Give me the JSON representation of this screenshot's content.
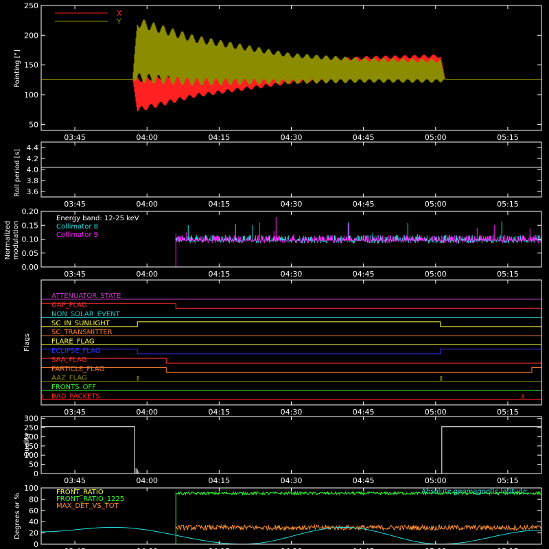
{
  "time_ticks": [
    "03:45",
    "04:00",
    "04:15",
    "04:30",
    "04:45",
    "05:00",
    "05:15"
  ],
  "panels": {
    "pointing": {
      "ylabel": "Pointing [\"]",
      "yticks": [
        "250",
        "200",
        "150",
        "100",
        "50"
      ],
      "legend": [
        {
          "label": "X",
          "color": "#ff2020"
        },
        {
          "label": "Y",
          "color": "#8c8c00"
        }
      ]
    },
    "roll": {
      "ylabel": "Roll period [s]",
      "yticks": [
        "4.4",
        "4.2",
        "4.0",
        "3.8",
        "3.6"
      ]
    },
    "modulation": {
      "ylabel_line1": "Normalized",
      "ylabel_line2": "modulation",
      "yticks": [
        "0.20",
        "0.15",
        "0.10",
        "0.05",
        "0.00"
      ],
      "legend_title": "Energy band: 12-25 keV",
      "legend": [
        {
          "label": "Collimator 8",
          "color": "#20e0e0"
        },
        {
          "label": "Collimator 9",
          "color": "#ff20ff"
        }
      ]
    },
    "flags": {
      "ylabel": "Flags",
      "items": [
        {
          "label": "ATTENUATOR_STATE",
          "color": "#c040c0"
        },
        {
          "label": "GAP_FLAG",
          "color": "#ff3030"
        },
        {
          "label": "NON_SOLAR_EVENT",
          "color": "#20c0c0"
        },
        {
          "label": "SC_IN_SUNLIGHT",
          "color": "#ffff40"
        },
        {
          "label": "SC_TRANSMITTER",
          "color": "#ff8030"
        },
        {
          "label": "FLARE_FLAG",
          "color": "#ffff40"
        },
        {
          "label": "ECLIPSE_FLAG",
          "color": "#3030ff"
        },
        {
          "label": "SAA_FLAG",
          "color": "#ff3030"
        },
        {
          "label": "PARTICLE_FLAG",
          "color": "#ff8030"
        },
        {
          "label": "AAZ_FLAG",
          "color": "#8c8c00"
        },
        {
          "label": "FRONTS_OFF",
          "color": "#30ff30"
        },
        {
          "label": "BAD_PACKETS",
          "color": "#ff2020"
        }
      ]
    },
    "quality": {
      "ylabel": "Quality",
      "yticks": [
        "300",
        "250",
        "200",
        "150",
        "100",
        "50",
        "0"
      ]
    },
    "ratio": {
      "ylabel": "Degrees or %",
      "yticks": [
        "100",
        "80",
        "60",
        "40",
        "20",
        "0"
      ],
      "legend": [
        {
          "label": "FRONT_RATIO",
          "color": "#ffff40"
        },
        {
          "label": "FRONT_RATIO_1225",
          "color": "#30ff30"
        },
        {
          "label": "MAX_DET_VS_TOT",
          "color": "#ff9030"
        }
      ],
      "annotation": "Absolute geomagnetic latitude",
      "annotation_color": "#20e0e0"
    }
  },
  "chart_data": [
    {
      "type": "line",
      "ylabel": "Pointing [\"]",
      "x_labels": [
        "03:45",
        "04:00",
        "04:15",
        "04:30",
        "04:45",
        "05:00",
        "05:15"
      ],
      "ylim": [
        40,
        250
      ],
      "series": [
        {
          "name": "X",
          "color": "#ff2020",
          "note_values": "oscillating band",
          "x": [
            "03:38",
            "03:57",
            "03:58",
            "04:10",
            "04:30",
            "04:45",
            "05:01",
            "05:02",
            "05:22"
          ],
          "lower": [
            126,
            126,
            70,
            95,
            118,
            128,
            130,
            126,
            126
          ],
          "upper": [
            126,
            126,
            130,
            140,
            155,
            165,
            168,
            126,
            126
          ]
        },
        {
          "name": "Y",
          "color": "#8c8c00",
          "x": [
            "03:38",
            "03:57",
            "03:58",
            "04:10",
            "04:30",
            "04:45",
            "05:01",
            "05:02",
            "05:22"
          ],
          "lower": [
            126,
            126,
            120,
            115,
            118,
            120,
            120,
            126,
            126
          ],
          "upper": [
            126,
            126,
            230,
            200,
            170,
            162,
            160,
            126,
            126
          ]
        }
      ]
    },
    {
      "type": "line",
      "ylabel": "Roll period [s]",
      "ylim": [
        3.5,
        4.5
      ],
      "series": [
        {
          "name": "",
          "color": "#ffffff",
          "x": [
            "03:38",
            "05:22"
          ],
          "y": [
            4.04,
            4.04
          ]
        }
      ]
    },
    {
      "type": "line",
      "title": "Energy band: 12-25 keV",
      "ylim": [
        0.0,
        0.2
      ],
      "series": [
        {
          "name": "Collimator 8",
          "color": "#20e0e0",
          "x": [
            "04:06",
            "05:22"
          ],
          "typical": 0.1,
          "max": 0.2
        },
        {
          "name": "Collimator 9",
          "color": "#ff20ff",
          "x": [
            "04:06",
            "05:22"
          ],
          "typical": 0.1,
          "max": 0.2
        }
      ]
    },
    {
      "type": "line",
      "ylabel": "Flags",
      "series": [
        {
          "name": "GAP_FLAG",
          "steps": [
            [
              "03:38",
              1
            ],
            [
              "04:06",
              0
            ]
          ]
        },
        {
          "name": "SC_IN_SUNLIGHT",
          "steps": [
            [
              "03:38",
              0
            ],
            [
              "03:58",
              1
            ],
            [
              "05:01",
              0
            ]
          ]
        },
        {
          "name": "ECLIPSE_FLAG",
          "steps": [
            [
              "03:38",
              1
            ],
            [
              "03:58",
              0
            ],
            [
              "05:01",
              1
            ]
          ]
        },
        {
          "name": "SAA_FLAG",
          "steps": [
            [
              "03:38",
              1
            ],
            [
              "04:04",
              0
            ]
          ]
        },
        {
          "name": "PARTICLE_FLAG",
          "steps": [
            [
              "03:38",
              1
            ],
            [
              "04:04",
              0
            ],
            [
              "05:20",
              1
            ]
          ]
        },
        {
          "name": "AAZ_FLAG",
          "pulses": [
            "03:58",
            "05:01"
          ]
        },
        {
          "name": "BAD_PACKETS",
          "pulses": [
            "03:38",
            "05:18"
          ]
        }
      ]
    },
    {
      "type": "line",
      "ylabel": "Quality",
      "ylim": [
        0,
        300
      ],
      "series": [
        {
          "name": "",
          "color": "#ffffff",
          "x": [
            "03:38",
            "03:57",
            "03:58",
            "03:59",
            "05:01",
            "05:22"
          ],
          "y": [
            255,
            255,
            0,
            30,
            255,
            255
          ]
        }
      ]
    },
    {
      "type": "line",
      "ylabel": "Degrees or %",
      "ylim": [
        0,
        100
      ],
      "series": [
        {
          "name": "FRONT_RATIO",
          "color": "#ffff40",
          "x": [
            "03:38",
            "05:22"
          ],
          "y": [
            0,
            0
          ]
        },
        {
          "name": "FRONT_RATIO_1225",
          "color": "#30ff30",
          "x": [
            "04:06",
            "05:22"
          ],
          "y": [
            90,
            90
          ]
        },
        {
          "name": "MAX_DET_VS_TOT",
          "color": "#ff9030",
          "x": [
            "04:06",
            "05:22"
          ],
          "y": [
            30,
            30
          ]
        },
        {
          "name": "Absolute geomagnetic latitude",
          "color": "#20e0e0",
          "x": [
            "03:38",
            "03:53",
            "04:20",
            "04:41",
            "05:01",
            "05:22"
          ],
          "y": [
            22,
            30,
            0,
            30,
            0,
            25
          ]
        }
      ]
    }
  ]
}
